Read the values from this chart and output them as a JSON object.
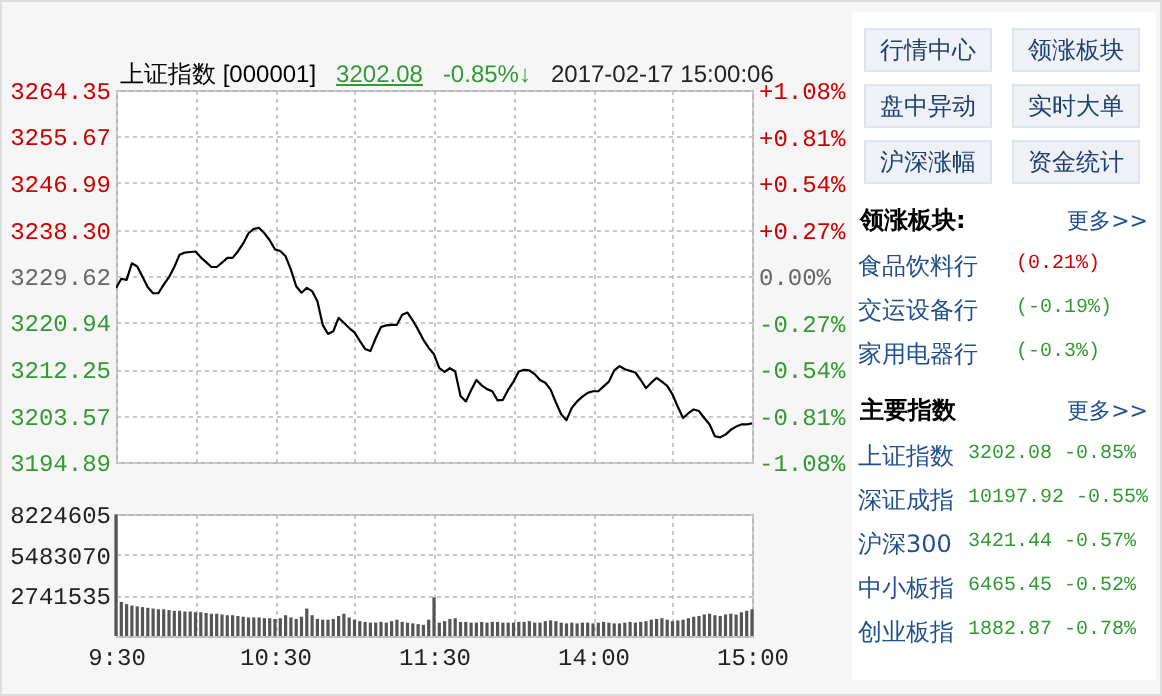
{
  "chart_data": [
    {
      "type": "line",
      "title": "上证指数 [000001]",
      "annotations": [
        "3202.08",
        "-0.85%↓",
        "2017-02-17 15:00:06"
      ],
      "categories": [
        null,
        null,
        null,
        null,
        null,
        null,
        null,
        null,
        null,
        null,
        null,
        null,
        null,
        null,
        null,
        null,
        null,
        null,
        null,
        null,
        null,
        null,
        null,
        null,
        null,
        null,
        null,
        null,
        null,
        null,
        null,
        null,
        null,
        null,
        null,
        null,
        null,
        null,
        null,
        null,
        null,
        null,
        null,
        null,
        null,
        null,
        null,
        null,
        null,
        null,
        null,
        null,
        null,
        null,
        null,
        null,
        null,
        null,
        null,
        null,
        null,
        null,
        null,
        null,
        null,
        null,
        null,
        null,
        null,
        null,
        null,
        null,
        null,
        null,
        null,
        null,
        null,
        null,
        null,
        null,
        null,
        null,
        null,
        null,
        null,
        null,
        null,
        null,
        null,
        null,
        null,
        null,
        null,
        null,
        null,
        null,
        null,
        null,
        null,
        null,
        null,
        null,
        null,
        null,
        null,
        null,
        null,
        null,
        null,
        null,
        null,
        null,
        null,
        null,
        null,
        null,
        null,
        null,
        null,
        null,
        null
      ],
      "series": [
        {
          "color": "#000000",
          "values": [
            3227.4,
            3229.1,
            3228.9,
            3232.0,
            3231.4,
            3229.5,
            3227.5,
            3226.4,
            3226.4,
            3228.0,
            3229.4,
            3231.3,
            3233.6,
            3234.0,
            3234.1,
            3234.2,
            3233.1,
            3232.2,
            3231.3,
            3231.3,
            3232.1,
            3233.0,
            3233.0,
            3234.2,
            3235.7,
            3237.6,
            3238.4,
            3238.6,
            3237.6,
            3236.3,
            3234.6,
            3234.3,
            3233.3,
            3230.8,
            3227.7,
            3226.5,
            3227.4,
            3226.8,
            3224.9,
            3220.5,
            3218.8,
            3219.3,
            3221.8,
            3220.9,
            3219.9,
            3219.1,
            3217.5,
            3216.0,
            3215.6,
            3218.0,
            3220.1,
            3220.4,
            3220.5,
            3220.5,
            3222.4,
            3222.8,
            3221.3,
            3219.6,
            3217.7,
            3216.2,
            3215.0,
            3212.4,
            3211.7,
            3212.4,
            3211.8,
            3207.2,
            3206.2,
            3208.3,
            3210.2,
            3209.2,
            3208.5,
            3208.1,
            3206.4,
            3206.5,
            3208.4,
            3209.9,
            3211.8,
            3212.1,
            3212.0,
            3211.3,
            3210.2,
            3209.7,
            3208.4,
            3206.0,
            3203.8,
            3202.7,
            3205.0,
            3206.2,
            3207.1,
            3207.8,
            3208.1,
            3208.1,
            3209.0,
            3209.9,
            3212.0,
            3212.8,
            3212.2,
            3211.9,
            3211.6,
            3210.2,
            3208.7,
            3209.7,
            3210.6,
            3209.9,
            3209.1,
            3207.5,
            3205.2,
            3203.1,
            3204.0,
            3204.7,
            3204.4,
            3203.1,
            3201.9,
            3199.7,
            3199.5,
            3200.0,
            3200.9,
            3201.5,
            3201.9,
            3201.9,
            3202.1
          ]
        }
      ],
      "ylim": [
        3194.89,
        3264.35
      ],
      "yticks": [
        3194.89,
        3203.57,
        3212.25,
        3220.94,
        3229.62,
        {
          "value": 3238.3,
          "label": "3238.30"
        },
        3246.99,
        3255.67,
        3264.35
      ],
      "y2lim": [
        -1.08,
        1.08
      ],
      "y2ticks": [
        {
          "value": -1.08,
          "label": "-1.08%"
        },
        {
          "value": -0.81,
          "label": "-0.81%"
        },
        {
          "value": -0.54,
          "label": "-0.54%"
        },
        {
          "value": -0.27,
          "label": "-0.27%"
        },
        {
          "value": 0,
          "label": "0.00%"
        },
        {
          "value": 0.27,
          "label": "+0.27%"
        },
        {
          "value": 0.54,
          "label": "+0.54%"
        },
        {
          "value": 0.81,
          "label": "+0.81%"
        },
        {
          "value": 1.08,
          "label": "+1.08%"
        }
      ],
      "tick_labels": "y",
      "grid": true,
      "line_style": "solid"
    },
    {
      "type": "bar",
      "categories": [
        "9:30",
        null,
        null,
        null,
        null,
        null,
        null,
        null,
        null,
        null,
        null,
        null,
        null,
        null,
        null,
        null,
        null,
        null,
        null,
        null,
        null,
        null,
        null,
        null,
        null,
        null,
        null,
        null,
        null,
        null,
        "10:30",
        null,
        null,
        null,
        null,
        null,
        null,
        null,
        null,
        null,
        null,
        null,
        null,
        null,
        null,
        null,
        null,
        null,
        null,
        null,
        null,
        null,
        null,
        null,
        null,
        null,
        null,
        null,
        null,
        null,
        "11:30",
        null,
        null,
        null,
        null,
        null,
        null,
        null,
        null,
        null,
        null,
        null,
        null,
        null,
        null,
        null,
        null,
        null,
        null,
        null,
        null,
        null,
        null,
        null,
        null,
        null,
        null,
        null,
        null,
        null,
        "14:00",
        null,
        null,
        null,
        null,
        null,
        null,
        null,
        null,
        null,
        null,
        null,
        null,
        null,
        null,
        null,
        null,
        null,
        null,
        null,
        null,
        null,
        null,
        null,
        null,
        null,
        null,
        null,
        null,
        null,
        "15:00"
      ],
      "series": [
        {
          "color": "#555555",
          "values": [
            8200000,
            2300000,
            2150000,
            2050000,
            2000000,
            1950000,
            1900000,
            1850000,
            1800000,
            1800000,
            1750000,
            1700000,
            1700000,
            1650000,
            1650000,
            1600000,
            1600000,
            1550000,
            1500000,
            1500000,
            1450000,
            1400000,
            1400000,
            1350000,
            1300000,
            1250000,
            1250000,
            1250000,
            1200000,
            1200000,
            1150000,
            1200000,
            1400000,
            1250000,
            1150000,
            1300000,
            1850000,
            1400000,
            1150000,
            1100000,
            1100000,
            1150000,
            1350000,
            1500000,
            1250000,
            1100000,
            1000000,
            950000,
            900000,
            900000,
            950000,
            900000,
            1000000,
            1100000,
            950000,
            900000,
            850000,
            800000,
            750000,
            1100000,
            2600000,
            900000,
            1000000,
            1150000,
            1200000,
            950000,
            950000,
            900000,
            900000,
            950000,
            900000,
            950000,
            950000,
            900000,
            900000,
            900000,
            950000,
            950000,
            1000000,
            900000,
            900000,
            1000000,
            1050000,
            1000000,
            900000,
            850000,
            900000,
            850000,
            900000,
            900000,
            850000,
            900000,
            950000,
            900000,
            850000,
            850000,
            900000,
            950000,
            900000,
            950000,
            1000000,
            1100000,
            1150000,
            1200000,
            1100000,
            1000000,
            1050000,
            1100000,
            1200000,
            1300000,
            1350000,
            1450000,
            1500000,
            1400000,
            1350000,
            1450000,
            1500000,
            1450000,
            1600000,
            1700000,
            1800000
          ]
        }
      ],
      "ylim": [
        0,
        8224605
      ],
      "yticks": [
        {
          "value": 0,
          "label": null
        },
        2741535,
        5483070,
        8224605
      ],
      "grid": true
    },
    {
      "type": "other",
      "annotations": [
        "行情中心",
        "领涨板块",
        "盘中异动",
        "实时大单",
        "沪深涨幅",
        "资金统计",
        "领涨板块:",
        "更多>>",
        "食品饮料行",
        "(0.21%)",
        "交运设备行",
        "(-0.19%)",
        "家用电器行",
        "(-0.3%)",
        "主要指数",
        "更多>>",
        "上证指数",
        "3202.08 -0.85%",
        "深证成指",
        "10197.92 -0.55%",
        "沪深300",
        "3421.44 -0.57%",
        "中小板指",
        "6465.45 -0.52%",
        "创业板指",
        "1882.87 -0.78%"
      ]
    }
  ]
}
